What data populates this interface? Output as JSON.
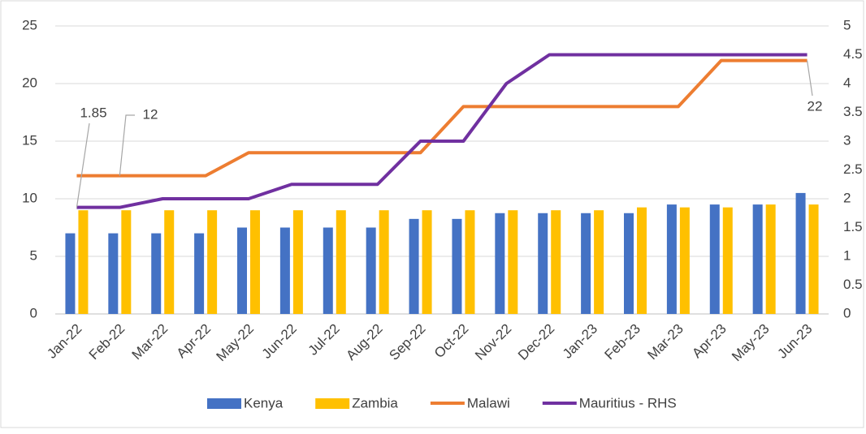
{
  "chart_data": {
    "type": "combo",
    "categories": [
      "Jan-22",
      "Feb-22",
      "Mar-22",
      "Apr-22",
      "May-22",
      "Jun-22",
      "Jul-22",
      "Aug-22",
      "Sep-22",
      "Oct-22",
      "Nov-22",
      "Dec-22",
      "Jan-23",
      "Feb-23",
      "Mar-23",
      "Apr-23",
      "May-23",
      "Jun-23"
    ],
    "series": [
      {
        "name": "Kenya",
        "kind": "bar",
        "color": "#4472c4",
        "values": [
          7,
          7,
          7,
          7,
          7.5,
          7.5,
          7.5,
          7.5,
          8.25,
          8.25,
          8.75,
          8.75,
          8.75,
          8.75,
          9.5,
          9.5,
          9.5,
          10.5
        ]
      },
      {
        "name": "Zambia",
        "kind": "bar",
        "color": "#ffc000",
        "values": [
          9,
          9,
          9,
          9,
          9,
          9,
          9,
          9,
          9,
          9,
          9,
          9,
          9,
          9.25,
          9.25,
          9.25,
          9.5,
          9.5
        ]
      },
      {
        "name": "Malawi",
        "kind": "line",
        "color": "#ed7d31",
        "values": [
          12,
          12,
          12,
          12,
          14,
          14,
          14,
          14,
          14,
          18,
          18,
          18,
          18,
          18,
          18,
          22,
          22,
          22
        ]
      },
      {
        "name": "Mauritius - RHS",
        "kind": "line",
        "axis": "y2",
        "color": "#7030a0",
        "values": [
          1.85,
          1.85,
          2,
          2,
          2,
          2.25,
          2.25,
          2.25,
          3,
          3,
          4,
          4.5,
          4.5,
          4.5,
          4.5,
          4.5,
          4.5,
          4.5
        ]
      }
    ],
    "ylim": [
      0,
      25
    ],
    "yticks": [
      0,
      5,
      10,
      15,
      20,
      25
    ],
    "y2lim": [
      0,
      5
    ],
    "y2ticks": [
      0,
      0.5,
      1,
      1.5,
      2,
      2.5,
      3,
      3.5,
      4,
      4.5,
      5
    ],
    "grid": true
  }
}
